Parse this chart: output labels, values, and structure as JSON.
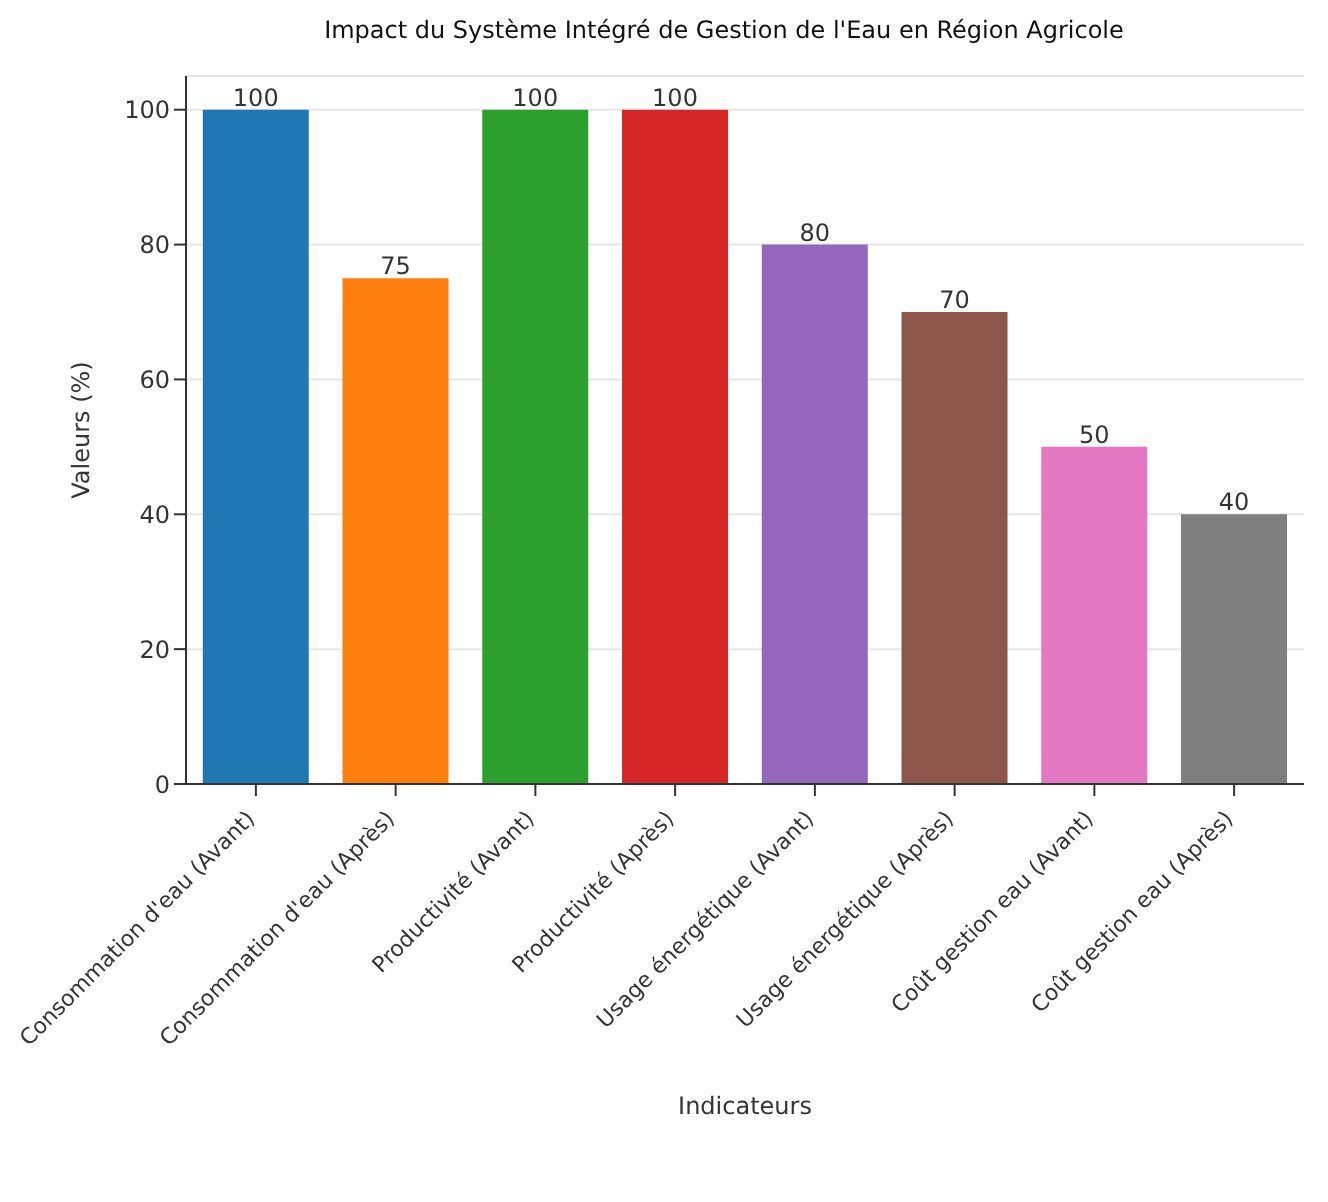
{
  "chart_data": {
    "type": "bar",
    "title": "Impact du Système Intégré de Gestion de l'Eau en Région Agricole",
    "xlabel": "Indicateurs",
    "ylabel": "Valeurs (%)",
    "categories": [
      "Consommation d'eau (Avant)",
      "Consommation d'eau (Après)",
      "Productivité (Avant)",
      "Productivité (Après)",
      "Usage énergétique (Avant)",
      "Usage énergétique (Après)",
      "Coût gestion eau (Avant)",
      "Coût gestion eau (Après)"
    ],
    "values": [
      100,
      75,
      100,
      100,
      80,
      70,
      50,
      40
    ],
    "colors": [
      "#1f77b4",
      "#ff7f0e",
      "#2ca02c",
      "#d62728",
      "#9467bd",
      "#8c564b",
      "#e377c2",
      "#7f7f7f"
    ],
    "ylim": [
      0,
      105
    ],
    "yticks": [
      0,
      20,
      40,
      60,
      80,
      100
    ],
    "grid": "y",
    "data_labels": true
  }
}
